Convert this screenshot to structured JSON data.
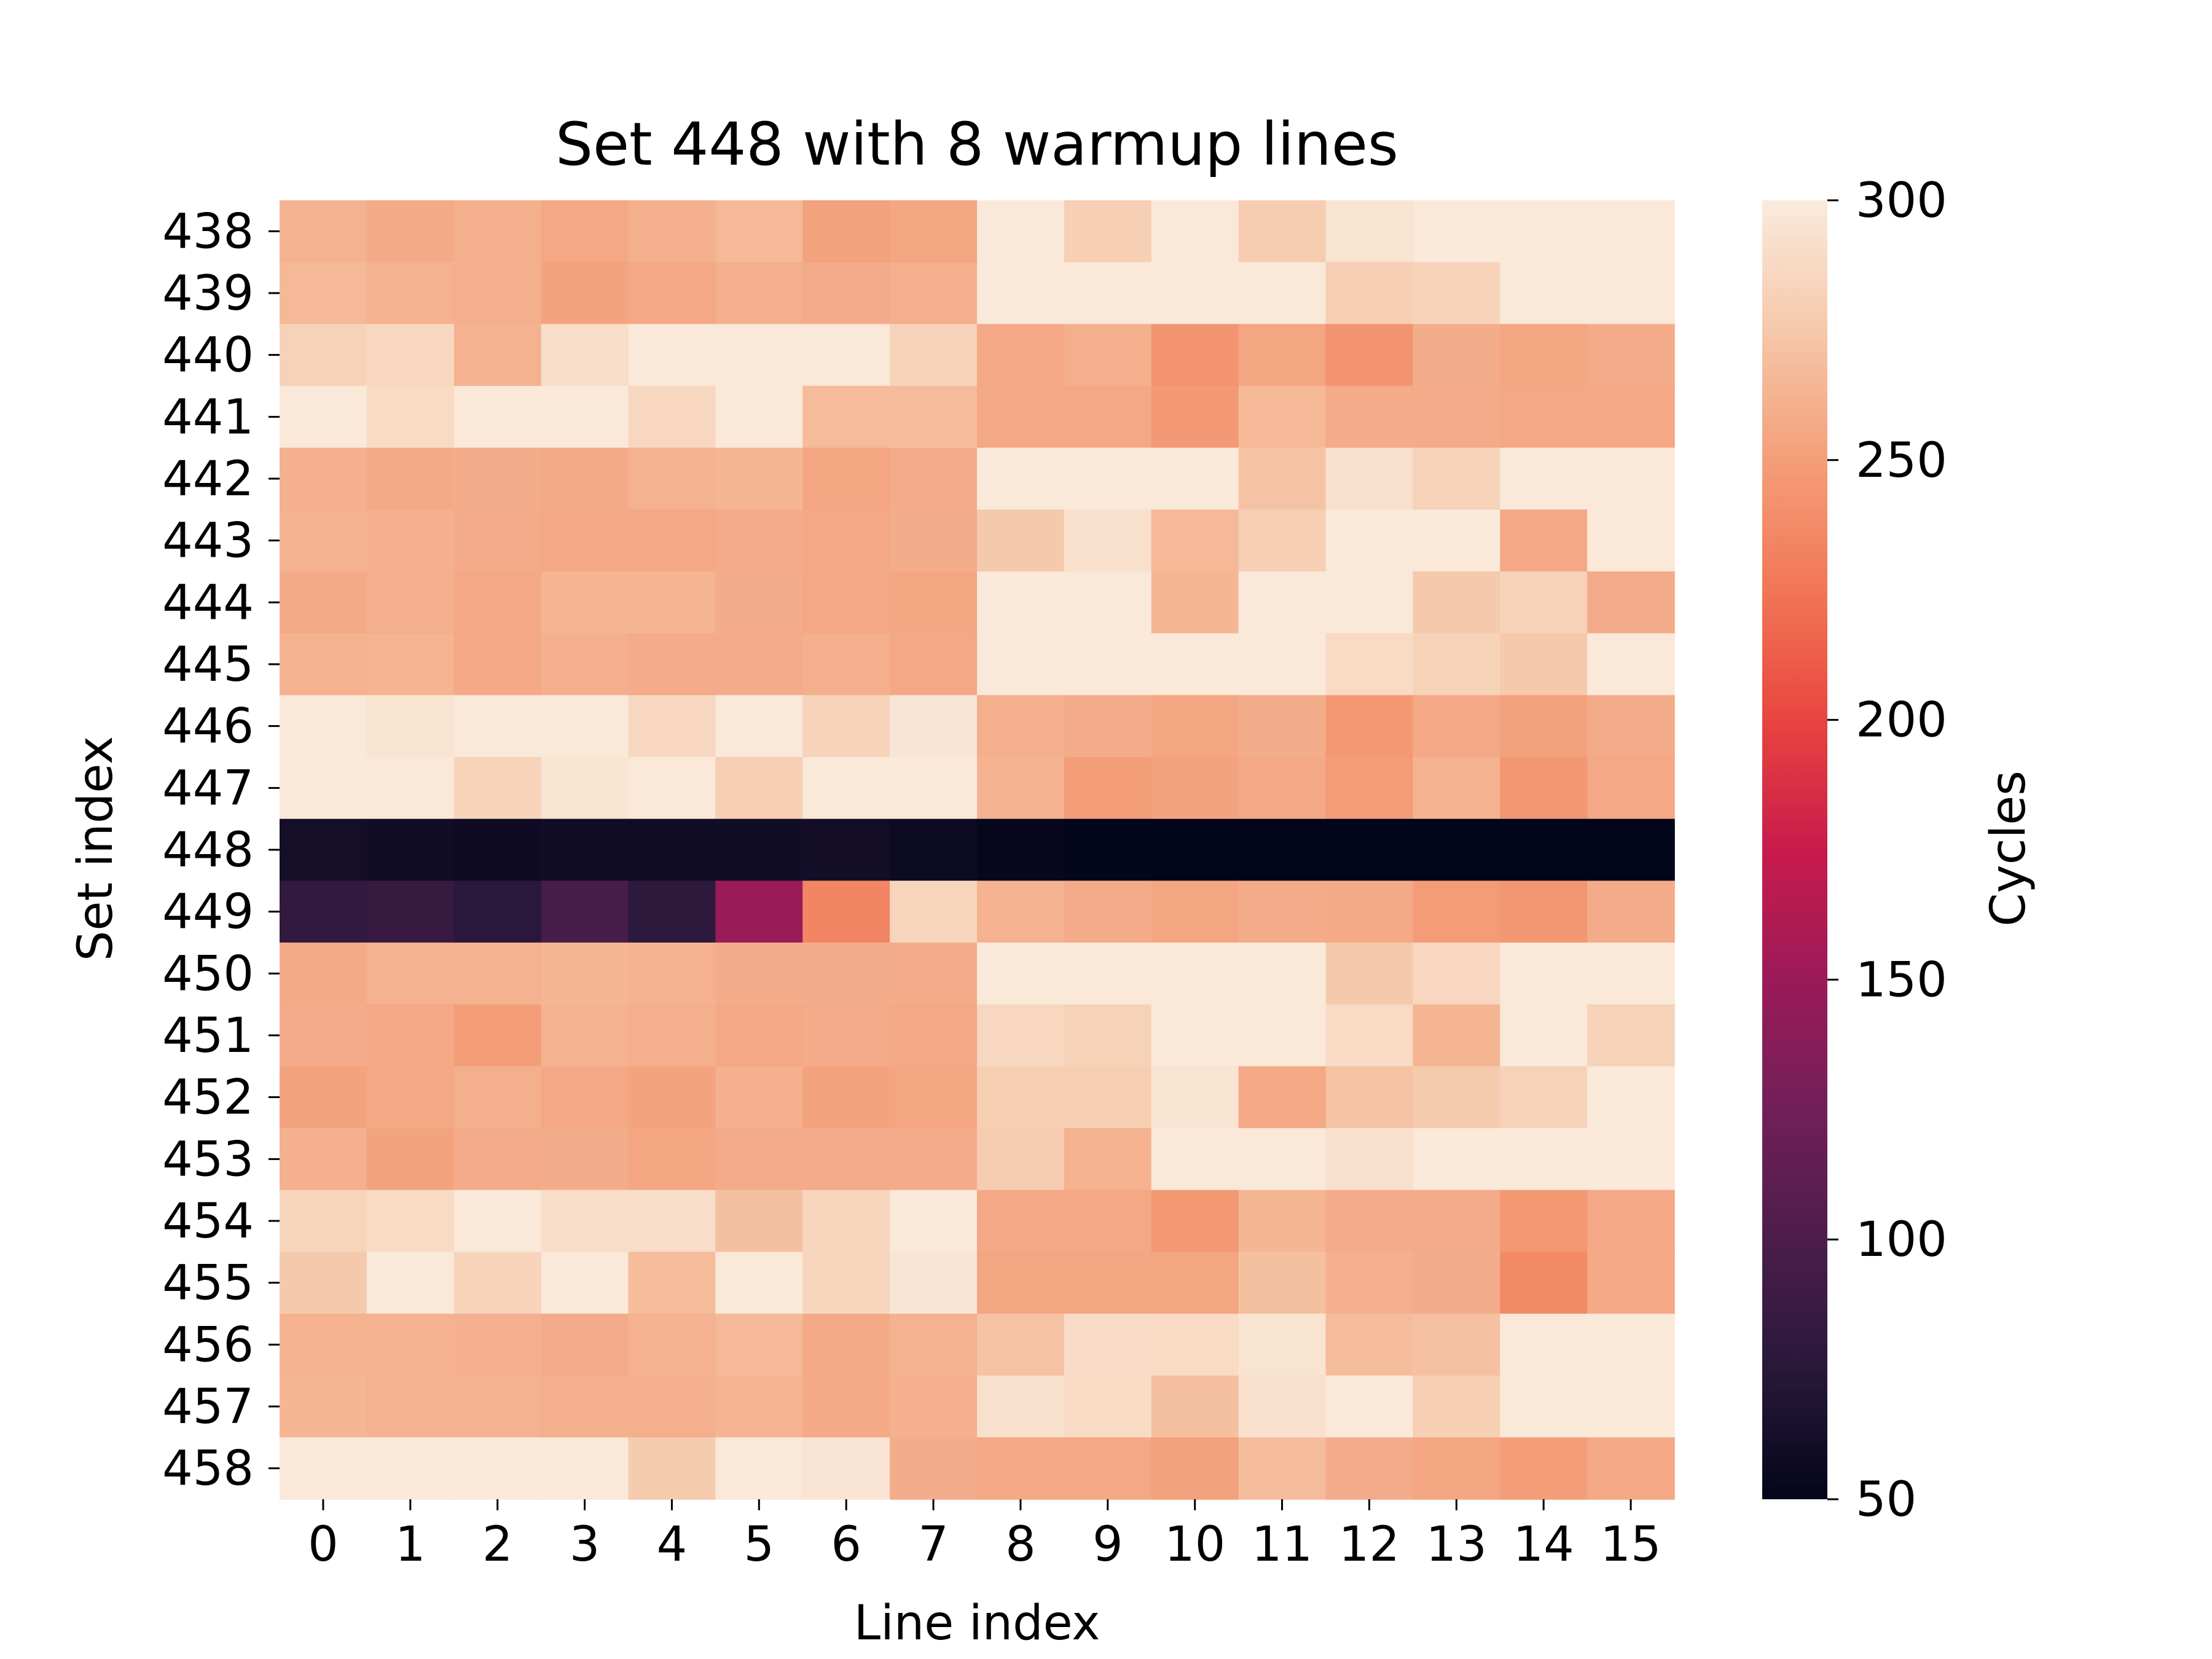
{
  "chart_data": {
    "type": "heatmap",
    "title": "Set 448 with 8 warmup lines",
    "xlabel": "Line index",
    "ylabel": "Set index",
    "colorbar_label": "Cycles",
    "vmin": 50,
    "vmax": 300,
    "colorbar_ticks": [
      50,
      100,
      150,
      200,
      250,
      300
    ],
    "colormap": "rocket",
    "x_labels": [
      "0",
      "1",
      "2",
      "3",
      "4",
      "5",
      "6",
      "7",
      "8",
      "9",
      "10",
      "11",
      "12",
      "13",
      "14",
      "15"
    ],
    "y_labels": [
      "438",
      "439",
      "440",
      "441",
      "442",
      "443",
      "444",
      "445",
      "446",
      "447",
      "448",
      "449",
      "450",
      "451",
      "452",
      "453",
      "454",
      "455",
      "456",
      "457",
      "458"
    ],
    "values": [
      [
        262,
        257,
        260,
        256,
        260,
        266,
        252,
        255,
        298,
        280,
        298,
        278,
        294,
        298,
        298,
        298
      ],
      [
        266,
        262,
        260,
        253,
        256,
        260,
        258,
        260,
        298,
        298,
        298,
        298,
        280,
        283,
        298,
        298
      ],
      [
        282,
        286,
        262,
        290,
        298,
        298,
        298,
        282,
        256,
        260,
        244,
        254,
        244,
        259,
        255,
        258
      ],
      [
        298,
        288,
        298,
        298,
        286,
        298,
        267,
        268,
        256,
        256,
        247,
        266,
        258,
        258,
        256,
        256
      ],
      [
        261,
        257,
        259,
        257,
        262,
        264,
        254,
        258,
        298,
        298,
        298,
        272,
        292,
        282,
        298,
        298
      ],
      [
        262,
        261,
        258,
        256,
        256,
        258,
        256,
        259,
        276,
        292,
        266,
        280,
        298,
        298,
        256,
        298
      ],
      [
        257,
        260,
        256,
        263,
        263,
        259,
        256,
        255,
        298,
        298,
        264,
        298,
        298,
        276,
        282,
        258
      ],
      [
        262,
        263,
        256,
        260,
        258,
        258,
        260,
        256,
        298,
        298,
        298,
        298,
        288,
        282,
        276,
        298
      ],
      [
        298,
        294,
        298,
        298,
        286,
        298,
        283,
        296,
        260,
        258,
        254,
        259,
        246,
        256,
        252,
        258
      ],
      [
        298,
        298,
        283,
        294,
        298,
        280,
        298,
        298,
        262,
        250,
        253,
        256,
        249,
        262,
        245,
        256
      ],
      [
        62,
        60,
        58,
        60,
        59,
        60,
        61,
        57,
        52,
        51,
        50,
        50,
        50,
        50,
        50,
        50
      ],
      [
        82,
        86,
        76,
        96,
        78,
        150,
        235,
        284,
        262,
        258,
        255,
        258,
        257,
        249,
        245,
        258
      ],
      [
        257,
        262,
        262,
        264,
        262,
        259,
        259,
        258,
        298,
        298,
        298,
        298,
        276,
        286,
        298,
        298
      ],
      [
        258,
        256,
        250,
        262,
        260,
        256,
        258,
        256,
        286,
        282,
        298,
        298,
        288,
        263,
        298,
        282
      ],
      [
        253,
        256,
        260,
        256,
        253,
        261,
        253,
        255,
        279,
        279,
        294,
        256,
        272,
        277,
        282,
        298
      ],
      [
        261,
        253,
        258,
        259,
        254,
        258,
        258,
        258,
        278,
        262,
        298,
        298,
        292,
        298,
        298,
        298
      ],
      [
        284,
        288,
        298,
        290,
        290,
        270,
        284,
        298,
        256,
        256,
        246,
        264,
        258,
        258,
        246,
        256
      ],
      [
        276,
        298,
        283,
        298,
        268,
        298,
        284,
        296,
        254,
        254,
        254,
        270,
        261,
        259,
        237,
        256
      ],
      [
        262,
        262,
        261,
        258,
        262,
        266,
        257,
        262,
        272,
        289,
        288,
        294,
        268,
        271,
        298,
        298
      ],
      [
        264,
        262,
        262,
        260,
        260,
        263,
        257,
        261,
        292,
        288,
        270,
        292,
        298,
        280,
        298,
        298
      ],
      [
        298,
        298,
        298,
        298,
        277,
        298,
        295,
        259,
        256,
        256,
        252,
        268,
        258,
        255,
        250,
        256
      ]
    ]
  }
}
